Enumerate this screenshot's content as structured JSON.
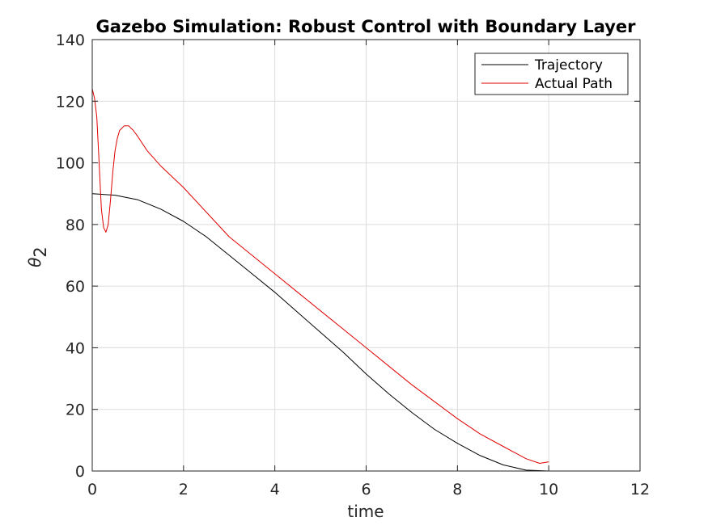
{
  "chart_data": {
    "type": "line",
    "title": "Gazebo Simulation: Robust Control with Boundary Layer",
    "xlabel": "time",
    "ylabel": {
      "base": "θ",
      "subscript": "2"
    },
    "xlim": [
      0,
      12
    ],
    "ylim": [
      0,
      140
    ],
    "xticks": [
      0,
      2,
      4,
      6,
      8,
      10,
      12
    ],
    "yticks": [
      0,
      20,
      40,
      60,
      80,
      100,
      120,
      140
    ],
    "grid": true,
    "legend_position": "top-right",
    "series": [
      {
        "name": "Trajectory",
        "color": "#000000",
        "x": [
          0,
          0.5,
          1,
          1.5,
          2,
          2.5,
          3,
          3.5,
          4,
          4.5,
          5,
          5.5,
          6,
          6.5,
          7,
          7.5,
          8,
          8.5,
          9,
          9.5,
          10
        ],
        "y": [
          90,
          89.5,
          88,
          85,
          81,
          76,
          70,
          64,
          58,
          51.5,
          45,
          38.5,
          31.5,
          25,
          19,
          13.5,
          9,
          5,
          2,
          0.3,
          0
        ]
      },
      {
        "name": "Actual Path",
        "color": "#e00000",
        "x": [
          0,
          0.05,
          0.1,
          0.15,
          0.2,
          0.25,
          0.3,
          0.35,
          0.4,
          0.45,
          0.5,
          0.55,
          0.6,
          0.7,
          0.8,
          0.9,
          1.0,
          1.2,
          1.5,
          2,
          2.5,
          3,
          3.5,
          4,
          4.5,
          5,
          5.5,
          6,
          6.5,
          7,
          7.5,
          8,
          8.5,
          9,
          9.5,
          9.8,
          10
        ],
        "y": [
          124,
          121,
          115,
          100,
          85,
          79,
          77.5,
          80,
          88,
          97,
          104,
          108,
          110.5,
          112,
          112,
          110.5,
          108.5,
          104,
          99,
          92,
          84,
          76,
          70,
          64,
          58,
          52,
          46,
          40,
          34,
          28,
          22.5,
          17,
          12,
          8,
          4,
          2.5,
          3
        ]
      }
    ]
  }
}
